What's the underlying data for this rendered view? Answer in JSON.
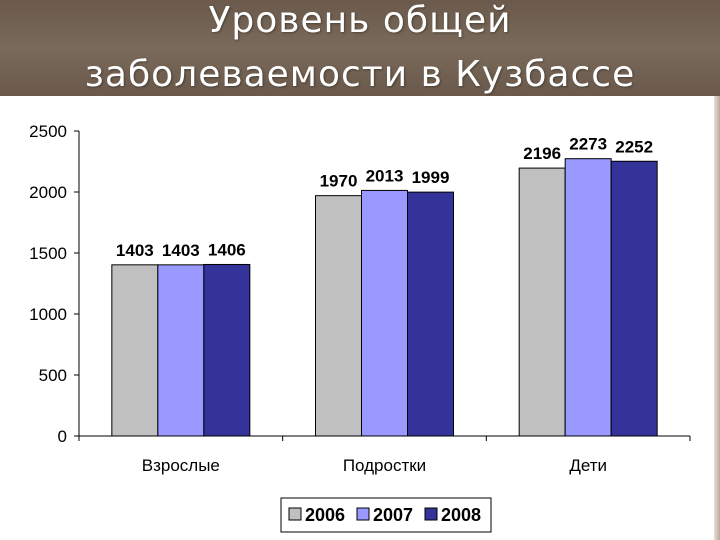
{
  "slide": {
    "title_line1": "Уровень общей",
    "title_line2": "заболеваемости в Кузбассе"
  },
  "colors": {
    "title_band": "#736252",
    "series_2006": "#c0c0c0",
    "series_2007": "#9999ff",
    "series_2008": "#333399"
  },
  "chart_data": {
    "type": "bar",
    "title": "",
    "xlabel": "",
    "ylabel": "",
    "categories": [
      "Взрослые",
      "Подростки",
      "Дети"
    ],
    "ylim": [
      0,
      2500
    ],
    "yticks": [
      0,
      500,
      1000,
      1500,
      2000,
      2500
    ],
    "grid": false,
    "legend_position": "bottom",
    "series": [
      {
        "name": "2006",
        "color": "#c0c0c0",
        "values": [
          1403,
          1970,
          2196
        ]
      },
      {
        "name": "2007",
        "color": "#9999ff",
        "values": [
          1403,
          2013,
          2273
        ]
      },
      {
        "name": "2008",
        "color": "#333399",
        "values": [
          1406,
          1999,
          2252
        ]
      }
    ]
  }
}
